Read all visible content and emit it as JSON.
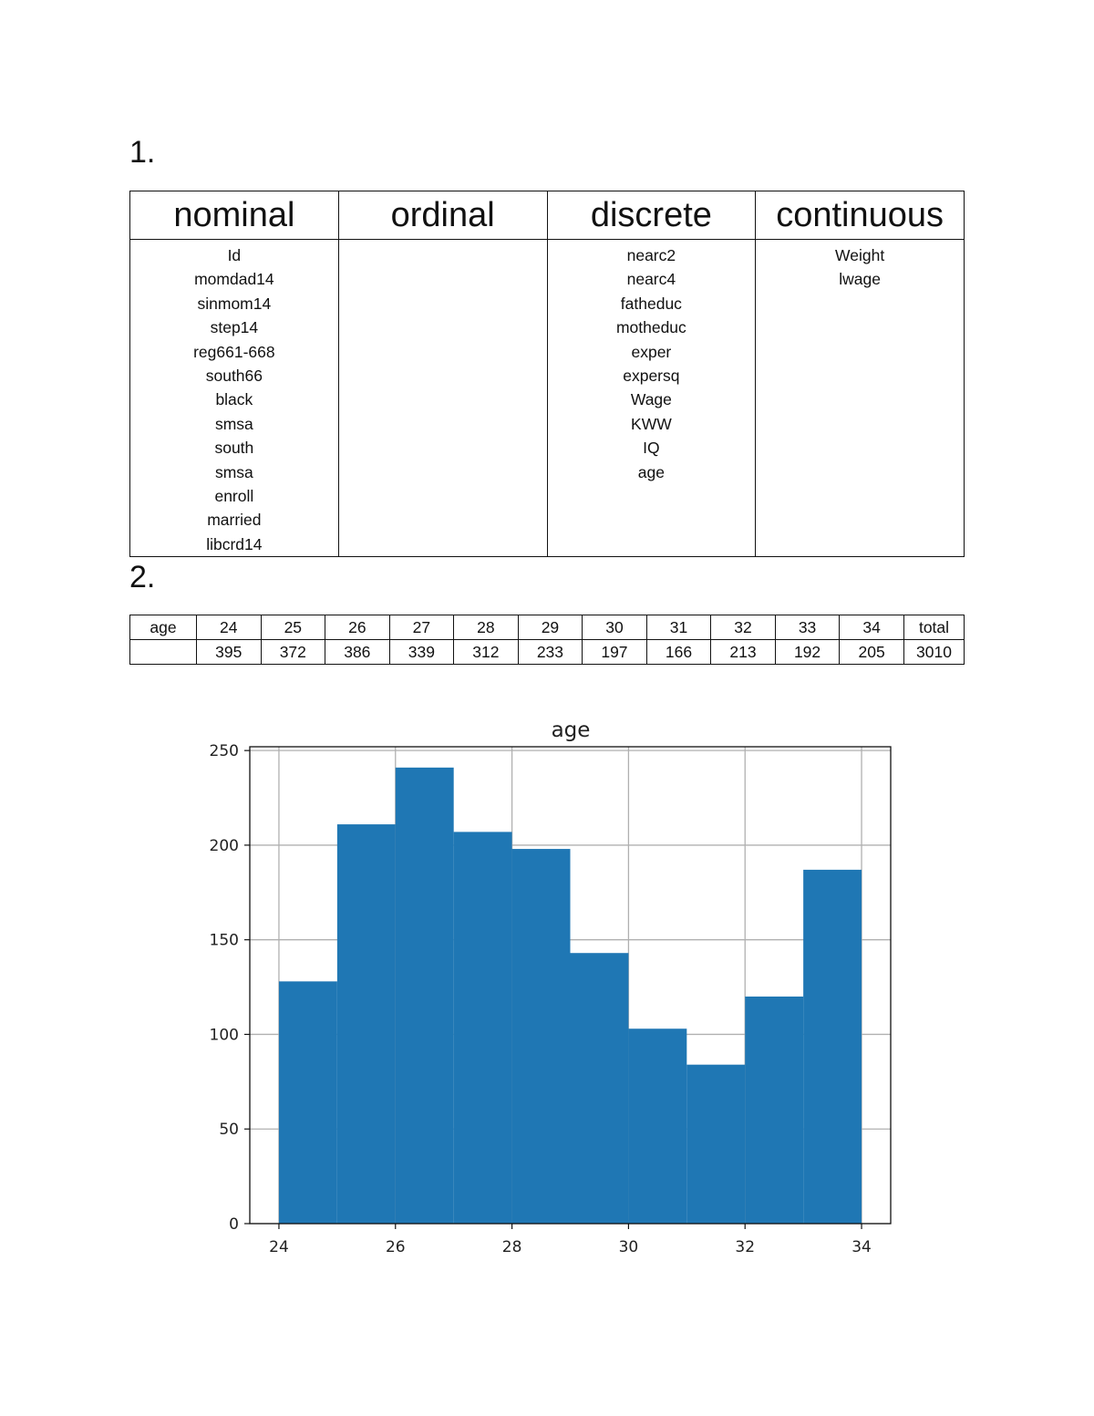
{
  "sections": {
    "first": "1.",
    "second": "2."
  },
  "variable_types": {
    "headers": [
      "nominal",
      "ordinal",
      "discrete",
      "continuous"
    ],
    "nominal": [
      "Id",
      "momdad14",
      "sinmom14",
      "step14",
      "reg661-668",
      "south66",
      "black",
      "smsa",
      "south",
      "smsa",
      "enroll",
      "married",
      "libcrd14"
    ],
    "ordinal": [],
    "discrete": [
      "nearc2",
      "nearc4",
      "fatheduc",
      "motheduc",
      "exper",
      "expersq",
      "Wage",
      "KWW",
      "IQ",
      "age"
    ],
    "continuous": [
      "Weight",
      "lwage"
    ]
  },
  "age_table": {
    "row_label": "age",
    "ages": [
      "24",
      "25",
      "26",
      "27",
      "28",
      "29",
      "30",
      "31",
      "32",
      "33",
      "34"
    ],
    "total_label": "total",
    "second_row_label": "",
    "counts": [
      "395",
      "372",
      "386",
      "339",
      "312",
      "233",
      "197",
      "166",
      "213",
      "192",
      "205"
    ],
    "total": "3010"
  },
  "chart_data": {
    "type": "bar",
    "title": "age",
    "xlabel": "",
    "ylabel": "",
    "bin_edges": [
      24,
      25,
      26,
      27,
      28,
      29,
      30,
      31,
      32,
      33,
      34
    ],
    "values": [
      128,
      211,
      241,
      207,
      198,
      143,
      103,
      84,
      120,
      187
    ],
    "xlim": [
      23.5,
      34.5
    ],
    "ylim": [
      0,
      252
    ],
    "xticks": [
      24,
      26,
      28,
      30,
      32,
      34
    ],
    "yticks": [
      0,
      50,
      100,
      150,
      200,
      250
    ],
    "grid": true,
    "bar_color": "#1f77b4",
    "grid_color": "#b0b0b0"
  }
}
